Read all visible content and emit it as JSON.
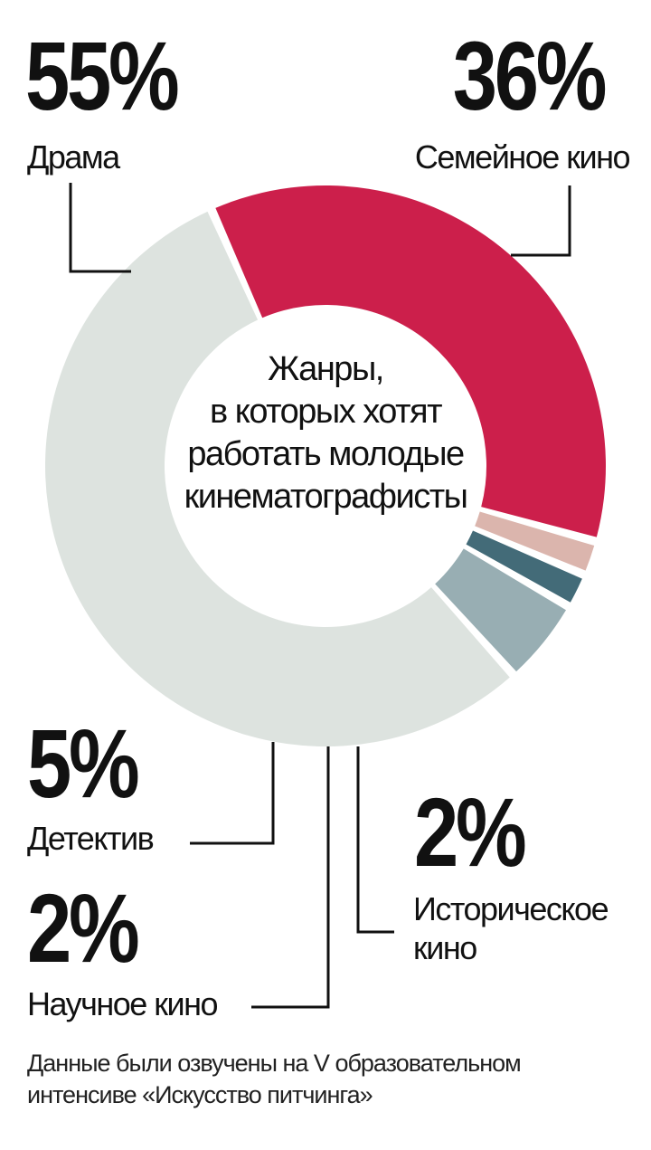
{
  "chart_data": {
    "type": "pie",
    "variant": "donut",
    "title_lines": [
      "Жанры,",
      "в которых хотят",
      "работать молодые",
      "кинематографисты"
    ],
    "slices": [
      {
        "label": "Семейное кино",
        "value": 36,
        "value_text": "36%",
        "color": "#cc1f4b"
      },
      {
        "label": "Историческое кино",
        "label_lines": [
          "Историческое",
          "кино"
        ],
        "value": 2,
        "value_text": "2%",
        "color": "#dbb5ad"
      },
      {
        "label": "Научное кино",
        "value": 2,
        "value_text": "2%",
        "color": "#436b78"
      },
      {
        "label": "Детектив",
        "value": 5,
        "value_text": "5%",
        "color": "#98aeb3"
      },
      {
        "label": "Драма",
        "value": 55,
        "value_text": "55%",
        "color": "#dde3df"
      }
    ]
  },
  "footnote_lines": [
    "Данные были озвучены на V образовательном",
    "интенсиве «Искусство питчинга»"
  ]
}
